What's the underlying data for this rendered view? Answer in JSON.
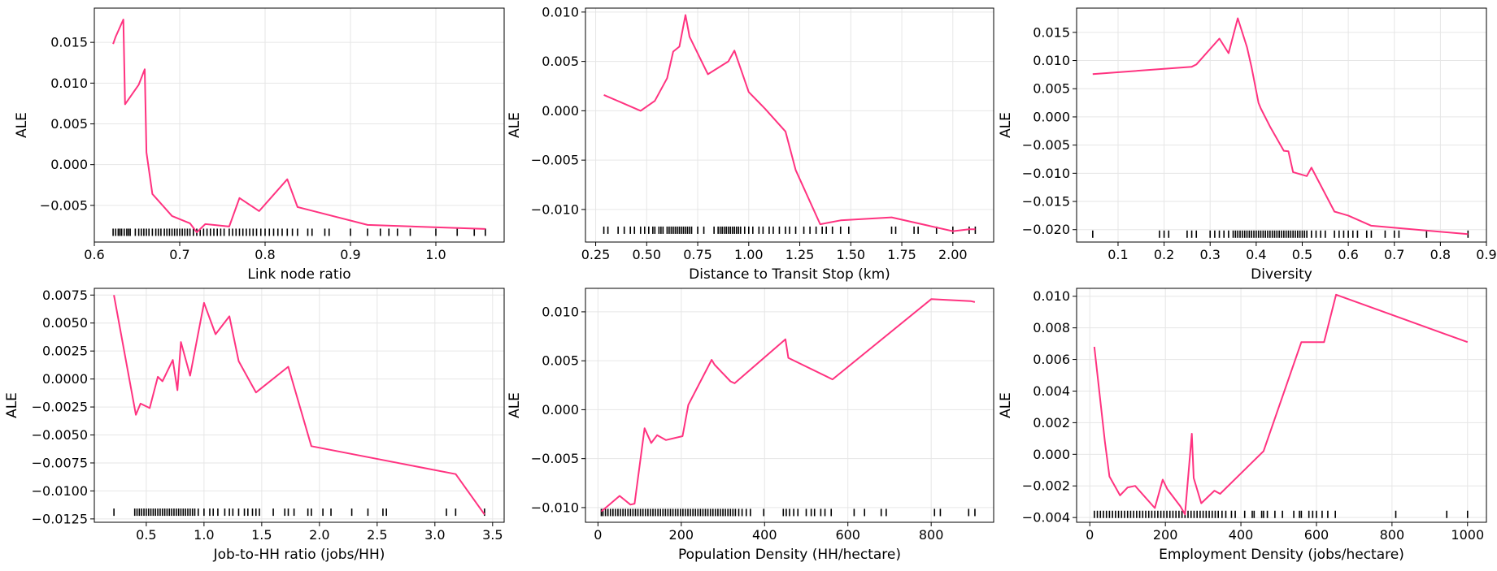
{
  "figure": {
    "line_color": "#ff3380",
    "rug_color": "#000000",
    "grid": true
  },
  "chart_data": [
    {
      "type": "line",
      "xlabel": "Link node ratio",
      "ylabel": "ALE",
      "xlim": [
        0.6,
        1.08
      ],
      "ylim": [
        -0.0095,
        0.0192
      ],
      "xticks": [
        0.6,
        0.7,
        0.8,
        0.9,
        1.0
      ],
      "xtick_labels": [
        "0.6",
        "0.7",
        "0.8",
        "0.9",
        "1.0"
      ],
      "yticks": [
        -0.005,
        0.0,
        0.005,
        0.01,
        0.015
      ],
      "ytick_labels": [
        "−0.005",
        "0.000",
        "0.005",
        "0.010",
        "0.015"
      ],
      "x": [
        0.622,
        0.625,
        0.634,
        0.636,
        0.652,
        0.659,
        0.661,
        0.668,
        0.691,
        0.712,
        0.72,
        0.73,
        0.758,
        0.77,
        0.793,
        0.826,
        0.838,
        0.92,
        1.058
      ],
      "y": [
        0.0148,
        0.0157,
        0.0178,
        0.0074,
        0.0098,
        0.0117,
        0.0015,
        -0.0036,
        -0.0063,
        -0.0072,
        -0.0083,
        -0.0073,
        -0.0076,
        -0.0041,
        -0.0057,
        -0.0018,
        -0.0052,
        -0.0074,
        -0.0079
      ],
      "rug_y": -0.0083,
      "rug_x": [
        0.622,
        0.625,
        0.628,
        0.63,
        0.632,
        0.635,
        0.638,
        0.64,
        0.642,
        0.648,
        0.652,
        0.655,
        0.658,
        0.661,
        0.664,
        0.668,
        0.672,
        0.675,
        0.678,
        0.682,
        0.685,
        0.688,
        0.691,
        0.694,
        0.697,
        0.7,
        0.703,
        0.706,
        0.709,
        0.712,
        0.716,
        0.72,
        0.724,
        0.728,
        0.732,
        0.736,
        0.74,
        0.744,
        0.748,
        0.752,
        0.758,
        0.762,
        0.766,
        0.77,
        0.774,
        0.778,
        0.782,
        0.786,
        0.79,
        0.795,
        0.8,
        0.805,
        0.81,
        0.815,
        0.82,
        0.826,
        0.832,
        0.838,
        0.85,
        0.855,
        0.87,
        0.875,
        0.9,
        0.92,
        0.935,
        0.945,
        0.955,
        0.97,
        1.0,
        1.025,
        1.045,
        1.058
      ]
    },
    {
      "type": "line",
      "xlabel": "Distance to Transit Stop (km)",
      "ylabel": "ALE",
      "xlim": [
        0.2,
        2.2
      ],
      "ylim": [
        -0.0133,
        0.0104
      ],
      "xticks": [
        0.25,
        0.5,
        0.75,
        1.0,
        1.25,
        1.5,
        1.75,
        2.0
      ],
      "xtick_labels": [
        "0.25",
        "0.50",
        "0.75",
        "1.00",
        "1.25",
        "1.50",
        "1.75",
        "2.00"
      ],
      "yticks": [
        -0.01,
        -0.005,
        0.0,
        0.005,
        0.01
      ],
      "ytick_labels": [
        "−0.010",
        "−0.005",
        "0.000",
        "0.005",
        "0.010"
      ],
      "x": [
        0.29,
        0.47,
        0.54,
        0.6,
        0.63,
        0.66,
        0.69,
        0.71,
        0.8,
        0.9,
        0.93,
        1.0,
        1.08,
        1.18,
        1.23,
        1.35,
        1.45,
        1.7,
        2.0,
        2.08,
        2.11
      ],
      "y": [
        0.0016,
        0.0,
        0.001,
        0.0033,
        0.006,
        0.0065,
        0.0097,
        0.0075,
        0.0037,
        0.005,
        0.0061,
        0.0019,
        0.0002,
        -0.0021,
        -0.006,
        -0.0115,
        -0.0111,
        -0.0108,
        -0.0122,
        -0.012,
        -0.012
      ],
      "rug_y": -0.0121,
      "rug_x": [
        0.29,
        0.31,
        0.36,
        0.39,
        0.42,
        0.44,
        0.47,
        0.49,
        0.51,
        0.53,
        0.54,
        0.56,
        0.57,
        0.58,
        0.6,
        0.61,
        0.62,
        0.63,
        0.64,
        0.65,
        0.66,
        0.67,
        0.68,
        0.69,
        0.7,
        0.71,
        0.72,
        0.75,
        0.78,
        0.83,
        0.85,
        0.86,
        0.87,
        0.88,
        0.89,
        0.9,
        0.91,
        0.92,
        0.93,
        0.94,
        0.95,
        0.96,
        0.98,
        1.0,
        1.02,
        1.05,
        1.07,
        1.1,
        1.12,
        1.15,
        1.18,
        1.2,
        1.23,
        1.27,
        1.3,
        1.33,
        1.36,
        1.38,
        1.41,
        1.45,
        1.49,
        1.7,
        1.72,
        1.81,
        1.83,
        1.92,
        2.0,
        2.08,
        2.11
      ]
    },
    {
      "type": "line",
      "xlabel": "Diversity",
      "ylabel": "ALE",
      "xlim": [
        0.01,
        0.9
      ],
      "ylim": [
        -0.0222,
        0.0193
      ],
      "xticks": [
        0.1,
        0.2,
        0.3,
        0.4,
        0.5,
        0.6,
        0.7,
        0.8,
        0.9
      ],
      "xtick_labels": [
        "0.1",
        "0.2",
        "0.3",
        "0.4",
        "0.5",
        "0.6",
        "0.7",
        "0.8",
        "0.9"
      ],
      "yticks": [
        -0.02,
        -0.015,
        -0.01,
        -0.005,
        0.0,
        0.005,
        0.01,
        0.015
      ],
      "ytick_labels": [
        "−0.020",
        "−0.015",
        "−0.010",
        "−0.005",
        "0.000",
        "0.005",
        "0.010",
        "0.015"
      ],
      "x": [
        0.045,
        0.26,
        0.27,
        0.32,
        0.34,
        0.36,
        0.38,
        0.39,
        0.405,
        0.41,
        0.43,
        0.46,
        0.47,
        0.48,
        0.51,
        0.52,
        0.57,
        0.6,
        0.65,
        0.86
      ],
      "y": [
        0.0076,
        0.0089,
        0.0093,
        0.0139,
        0.0113,
        0.0175,
        0.0124,
        0.0088,
        0.0025,
        0.0015,
        -0.0017,
        -0.006,
        -0.0061,
        -0.0098,
        -0.0105,
        -0.009,
        -0.0168,
        -0.0175,
        -0.0193,
        -0.0208
      ],
      "rug_y": -0.0208,
      "rug_x": [
        0.045,
        0.19,
        0.2,
        0.21,
        0.25,
        0.26,
        0.27,
        0.3,
        0.31,
        0.32,
        0.33,
        0.34,
        0.35,
        0.355,
        0.36,
        0.365,
        0.37,
        0.375,
        0.38,
        0.385,
        0.39,
        0.395,
        0.4,
        0.405,
        0.41,
        0.415,
        0.42,
        0.425,
        0.43,
        0.435,
        0.44,
        0.445,
        0.45,
        0.455,
        0.46,
        0.465,
        0.47,
        0.475,
        0.48,
        0.485,
        0.49,
        0.495,
        0.5,
        0.505,
        0.51,
        0.52,
        0.53,
        0.54,
        0.55,
        0.57,
        0.58,
        0.59,
        0.6,
        0.61,
        0.62,
        0.64,
        0.65,
        0.68,
        0.7,
        0.71,
        0.77,
        0.86
      ]
    },
    {
      "type": "line",
      "xlabel": "Job-to-HH ratio (jobs/HH)",
      "ylabel": "ALE",
      "xlim": [
        0.05,
        3.6
      ],
      "ylim": [
        -0.0128,
        0.0081
      ],
      "xticks": [
        0.5,
        1.0,
        1.5,
        2.0,
        2.5,
        3.0,
        3.5
      ],
      "xtick_labels": [
        "0.5",
        "1.0",
        "1.5",
        "2.0",
        "2.5",
        "3.0",
        "3.5"
      ],
      "yticks": [
        -0.0125,
        -0.01,
        -0.0075,
        -0.005,
        -0.0025,
        0.0,
        0.0025,
        0.005,
        0.0075
      ],
      "ytick_labels": [
        "−0.0125",
        "−0.0100",
        "−0.0075",
        "−0.0050",
        "−0.0025",
        "0.0000",
        "0.0025",
        "0.0050",
        "0.0075"
      ],
      "x": [
        0.22,
        0.41,
        0.45,
        0.53,
        0.6,
        0.64,
        0.73,
        0.77,
        0.8,
        0.88,
        1.0,
        1.1,
        1.22,
        1.3,
        1.45,
        1.73,
        1.93,
        3.18,
        3.43
      ],
      "y": [
        0.0075,
        -0.0032,
        -0.0022,
        -0.0026,
        0.0002,
        -0.0002,
        0.0017,
        -0.001,
        0.0033,
        0.0003,
        0.0068,
        0.004,
        0.0056,
        0.0016,
        -0.0012,
        0.0011,
        -0.006,
        -0.0085,
        -0.0121
      ],
      "rug_y": -0.0119,
      "rug_x": [
        0.22,
        0.4,
        0.42,
        0.44,
        0.46,
        0.48,
        0.5,
        0.52,
        0.54,
        0.56,
        0.58,
        0.6,
        0.62,
        0.64,
        0.66,
        0.68,
        0.7,
        0.72,
        0.74,
        0.76,
        0.78,
        0.8,
        0.82,
        0.84,
        0.86,
        0.88,
        0.9,
        0.92,
        0.95,
        1.0,
        1.05,
        1.08,
        1.12,
        1.18,
        1.22,
        1.25,
        1.3,
        1.35,
        1.38,
        1.42,
        1.45,
        1.48,
        1.6,
        1.7,
        1.73,
        1.78,
        1.9,
        1.93,
        2.03,
        2.1,
        2.28,
        2.42,
        2.55,
        2.58,
        3.1,
        3.18,
        3.43
      ]
    },
    {
      "type": "line",
      "xlabel": "Population Density (HH/hectare)",
      "ylabel": "ALE",
      "xlim": [
        -30,
        950
      ],
      "ylim": [
        -0.0115,
        0.0124
      ],
      "xticks": [
        0,
        200,
        400,
        600,
        800
      ],
      "xtick_labels": [
        "0",
        "200",
        "400",
        "600",
        "800"
      ],
      "yticks": [
        -0.01,
        -0.005,
        0.0,
        0.005,
        0.01
      ],
      "ytick_labels": [
        "−0.010",
        "−0.005",
        "0.000",
        "0.005",
        "0.010"
      ],
      "x": [
        8,
        52,
        78,
        88,
        112,
        128,
        142,
        163,
        203,
        217,
        273,
        280,
        318,
        328,
        450,
        457,
        563,
        800,
        895,
        905
      ],
      "y": [
        -0.0104,
        -0.0088,
        -0.0097,
        -0.0096,
        -0.0019,
        -0.0034,
        -0.0026,
        -0.0031,
        -0.0027,
        0.0005,
        0.0051,
        0.0046,
        0.0029,
        0.0027,
        0.0072,
        0.0053,
        0.0031,
        0.0113,
        0.0111,
        0.011
      ],
      "rug_y": -0.0105,
      "rug_x": [
        8,
        12,
        18,
        24,
        30,
        36,
        42,
        48,
        54,
        60,
        66,
        72,
        78,
        84,
        90,
        96,
        102,
        108,
        114,
        120,
        126,
        132,
        138,
        144,
        150,
        156,
        162,
        168,
        174,
        180,
        186,
        192,
        198,
        204,
        210,
        216,
        222,
        228,
        234,
        240,
        246,
        252,
        258,
        264,
        270,
        276,
        282,
        288,
        294,
        300,
        306,
        312,
        318,
        324,
        330,
        338,
        346,
        356,
        366,
        398,
        445,
        452,
        460,
        470,
        480,
        500,
        512,
        520,
        535,
        545,
        560,
        615,
        640,
        680,
        692,
        808,
        822,
        890,
        905
      ]
    },
    {
      "type": "line",
      "xlabel": "Employment Density (jobs/hectare)",
      "ylabel": "ALE",
      "xlim": [
        -35,
        1050
      ],
      "ylim": [
        -0.0043,
        0.0105
      ],
      "xticks": [
        0,
        200,
        400,
        600,
        800,
        1000
      ],
      "xtick_labels": [
        "0",
        "200",
        "400",
        "600",
        "800",
        "1000"
      ],
      "yticks": [
        -0.004,
        -0.002,
        0.0,
        0.002,
        0.004,
        0.006,
        0.008,
        0.01
      ],
      "ytick_labels": [
        "−0.004",
        "−0.002",
        "0.000",
        "0.002",
        "0.004",
        "0.006",
        "0.008",
        "0.010"
      ],
      "x": [
        12,
        40,
        52,
        80,
        100,
        120,
        172,
        193,
        205,
        240,
        252,
        270,
        275,
        295,
        330,
        345,
        460,
        560,
        620,
        652,
        1000
      ],
      "y": [
        0.0068,
        0.0008,
        -0.0014,
        -0.0026,
        -0.0021,
        -0.002,
        -0.0034,
        -0.0016,
        -0.0022,
        -0.0033,
        -0.0038,
        0.0013,
        -0.0015,
        -0.0031,
        -0.0023,
        -0.0025,
        0.0002,
        0.0071,
        0.0071,
        0.0101,
        0.0071
      ],
      "rug_y": -0.0038,
      "rug_x": [
        12,
        20,
        28,
        36,
        44,
        52,
        60,
        68,
        76,
        84,
        92,
        100,
        108,
        116,
        124,
        132,
        140,
        148,
        156,
        164,
        172,
        180,
        188,
        196,
        204,
        212,
        220,
        228,
        236,
        244,
        252,
        260,
        268,
        276,
        284,
        292,
        300,
        308,
        316,
        324,
        332,
        340,
        350,
        360,
        375,
        385,
        410,
        430,
        435,
        455,
        460,
        470,
        490,
        510,
        540,
        555,
        560,
        580,
        590,
        600,
        615,
        630,
        650,
        810,
        945,
        1000
      ]
    }
  ]
}
